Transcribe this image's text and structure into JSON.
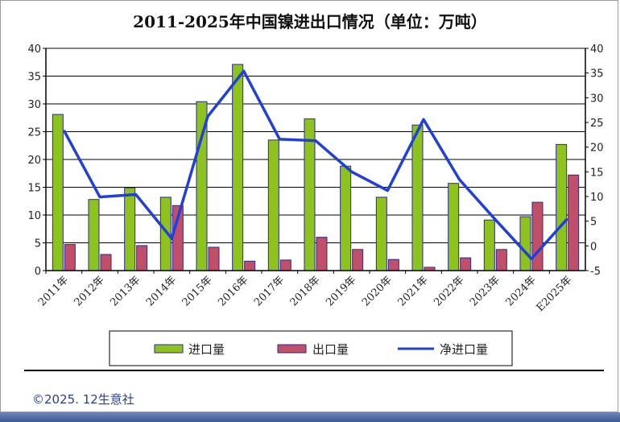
{
  "chart_data": {
    "type": "bar",
    "title": "2011-2025年中国镍进出口情况（单位：万吨）",
    "categories": [
      "2011年",
      "2012年",
      "2013年",
      "2014年",
      "2015年",
      "2016年",
      "2017年",
      "2018年",
      "2019年",
      "2020年",
      "2021年",
      "2022年",
      "2023年",
      "2024年",
      "E2025年"
    ],
    "series": [
      {
        "name": "进口量",
        "kind": "bar",
        "axis": "left",
        "color": "#8dc21f",
        "values": [
          28.1,
          12.8,
          14.9,
          13.2,
          30.4,
          37.1,
          23.5,
          27.3,
          18.8,
          13.2,
          26.2,
          15.7,
          9.1,
          9.7,
          22.7
        ]
      },
      {
        "name": "出口量",
        "kind": "bar",
        "axis": "left",
        "color": "#c0506a",
        "values": [
          4.7,
          2.9,
          4.5,
          11.7,
          4.2,
          1.7,
          1.9,
          6.0,
          3.8,
          2.0,
          0.6,
          2.3,
          3.8,
          12.3,
          17.2
        ]
      },
      {
        "name": "净进口量",
        "kind": "line",
        "axis": "right",
        "color": "#2040d8",
        "values": [
          23.4,
          9.9,
          10.4,
          1.5,
          26.2,
          35.4,
          21.6,
          21.3,
          15.0,
          11.2,
          25.6,
          13.4,
          5.3,
          -2.6,
          5.5
        ]
      }
    ],
    "ylim_left": [
      0,
      40
    ],
    "yticks_left": [
      "0",
      "5",
      "10",
      "15",
      "20",
      "25",
      "30",
      "35",
      "40"
    ],
    "ylim_right": [
      -5,
      40
    ],
    "yticks_right": [
      "-5",
      "0",
      "5",
      "10",
      "15",
      "20",
      "25",
      "30",
      "35",
      "40"
    ],
    "grid": true,
    "legend_position": "bottom"
  },
  "footer": {
    "copyright": "©2025. 12生意社"
  }
}
